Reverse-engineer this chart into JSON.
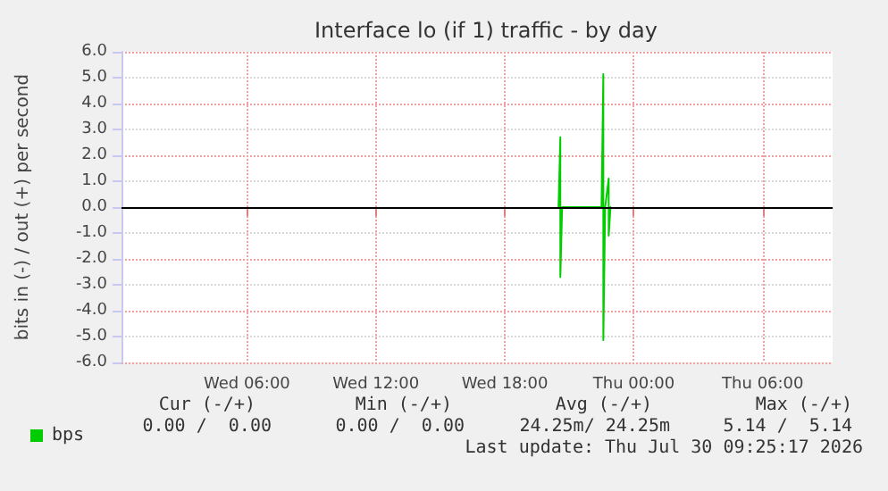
{
  "chart_data": {
    "type": "line",
    "title": "Interface lo (if 1) traffic - by day",
    "ylabel": "bits in (-) / out (+) per second",
    "xlim": [
      "2026-07-29T00:10",
      "2026-07-30T09:15"
    ],
    "xticks": [
      {
        "value": "2026-07-29T06:00",
        "label": "Wed 06:00"
      },
      {
        "value": "2026-07-29T12:00",
        "label": "Wed 12:00"
      },
      {
        "value": "2026-07-29T18:00",
        "label": "Wed 18:00"
      },
      {
        "value": "2026-07-30T00:00",
        "label": "Thu 00:00"
      },
      {
        "value": "2026-07-30T06:00",
        "label": "Thu 06:00"
      }
    ],
    "ylim": [
      -6,
      6
    ],
    "yticks": [
      {
        "value": -6,
        "label": "-6.0"
      },
      {
        "value": -5,
        "label": "-5.0"
      },
      {
        "value": -4,
        "label": "-4.0"
      },
      {
        "value": -3,
        "label": "-3.0"
      },
      {
        "value": -2,
        "label": "-2.0"
      },
      {
        "value": -1,
        "label": "-1.0"
      },
      {
        "value": 0,
        "label": "0.0"
      },
      {
        "value": 1,
        "label": "1.0"
      },
      {
        "value": 2,
        "label": "2.0"
      },
      {
        "value": 3,
        "label": "3.0"
      },
      {
        "value": 4,
        "label": "4.0"
      },
      {
        "value": 5,
        "label": "5.0"
      },
      {
        "value": 6,
        "label": "6.0"
      }
    ],
    "series": [
      {
        "name": "bps",
        "color": "#00cc00",
        "x": [
          "2026-07-29T20:30",
          "2026-07-29T20:35",
          "2026-07-29T20:35",
          "2026-07-29T20:40",
          "2026-07-29T22:30",
          "2026-07-29T22:35",
          "2026-07-29T22:35",
          "2026-07-29T22:40",
          "2026-07-29T22:50",
          "2026-07-29T22:50",
          "2026-07-29T22:55"
        ],
        "values": [
          0,
          2.7,
          -2.7,
          0,
          0,
          5.14,
          -5.14,
          0,
          1.1,
          -1.1,
          0
        ]
      }
    ],
    "ref_lines": [
      {
        "axis": "y",
        "value": 0,
        "color": "#000000"
      }
    ],
    "grid": true,
    "legend": "bottom left",
    "marker": "none",
    "line_style": "solid",
    "annotations": [
      "Cur (-/+)",
      "Min (-/+)",
      "Avg (-/+)",
      "Max (-/+)",
      "0.00 /  0.00",
      "0.00 /  0.00",
      "24.25m/ 24.25m",
      "5.14 /  5.14",
      "Last update: Thu Jul 30 09:25:17 2026"
    ]
  }
}
